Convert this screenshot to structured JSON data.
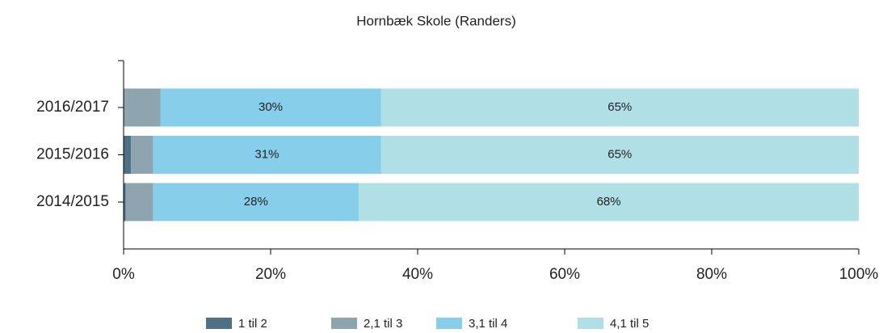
{
  "chart_data": {
    "type": "stacked_bar_horizontal",
    "title": "Hornbæk Skole (Randers)",
    "categories": [
      "2016/2017",
      "2015/2016",
      "2014/2015"
    ],
    "series": [
      {
        "name": "1 til 2",
        "color": "#4f7185",
        "values": [
          0,
          1,
          0.3
        ]
      },
      {
        "name": "2,1 til 3",
        "color": "#8ea4ae",
        "values": [
          5,
          3,
          3.7
        ]
      },
      {
        "name": "3,1 til 4",
        "color": "#87ceeb",
        "values": [
          30,
          31,
          28
        ],
        "value_labels": [
          "30%",
          "31%",
          "28%"
        ]
      },
      {
        "name": "4,1 til 5",
        "color": "#b0dfe5",
        "values": [
          65,
          65,
          68
        ],
        "value_labels": [
          "65%",
          "65%",
          "68%"
        ]
      }
    ],
    "xlim": [
      0,
      100
    ],
    "xticks": [
      {
        "value": 0,
        "label": "0%"
      },
      {
        "value": 20,
        "label": "20%"
      },
      {
        "value": 40,
        "label": "40%"
      },
      {
        "value": 60,
        "label": "60%"
      },
      {
        "value": 80,
        "label": "80%"
      },
      {
        "value": 100,
        "label": "100%"
      }
    ],
    "legend": "bottom"
  }
}
